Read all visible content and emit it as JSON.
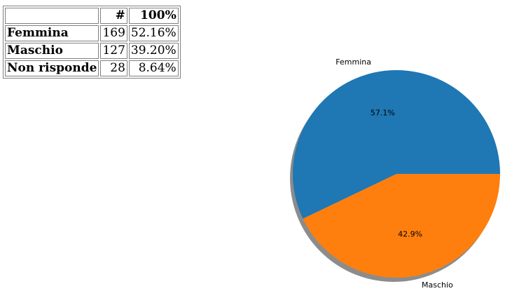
{
  "table": {
    "headers": [
      "",
      "#",
      "100%"
    ],
    "rows": [
      {
        "label": "Femmina",
        "count": "169",
        "percent": "52.16%"
      },
      {
        "label": "Maschio",
        "count": "127",
        "percent": "39.20%"
      },
      {
        "label": "Non risponde",
        "count": "28",
        "percent": "8.64%"
      }
    ]
  },
  "chart_data": {
    "type": "pie",
    "title": "",
    "categories": [
      "Femmina",
      "Maschio"
    ],
    "values": [
      57.1,
      42.9
    ],
    "value_labels": [
      "57.1%",
      "42.9%"
    ],
    "colors": [
      "#1f77b4",
      "#ff7f0e"
    ],
    "shadow": true,
    "legend": "none"
  }
}
